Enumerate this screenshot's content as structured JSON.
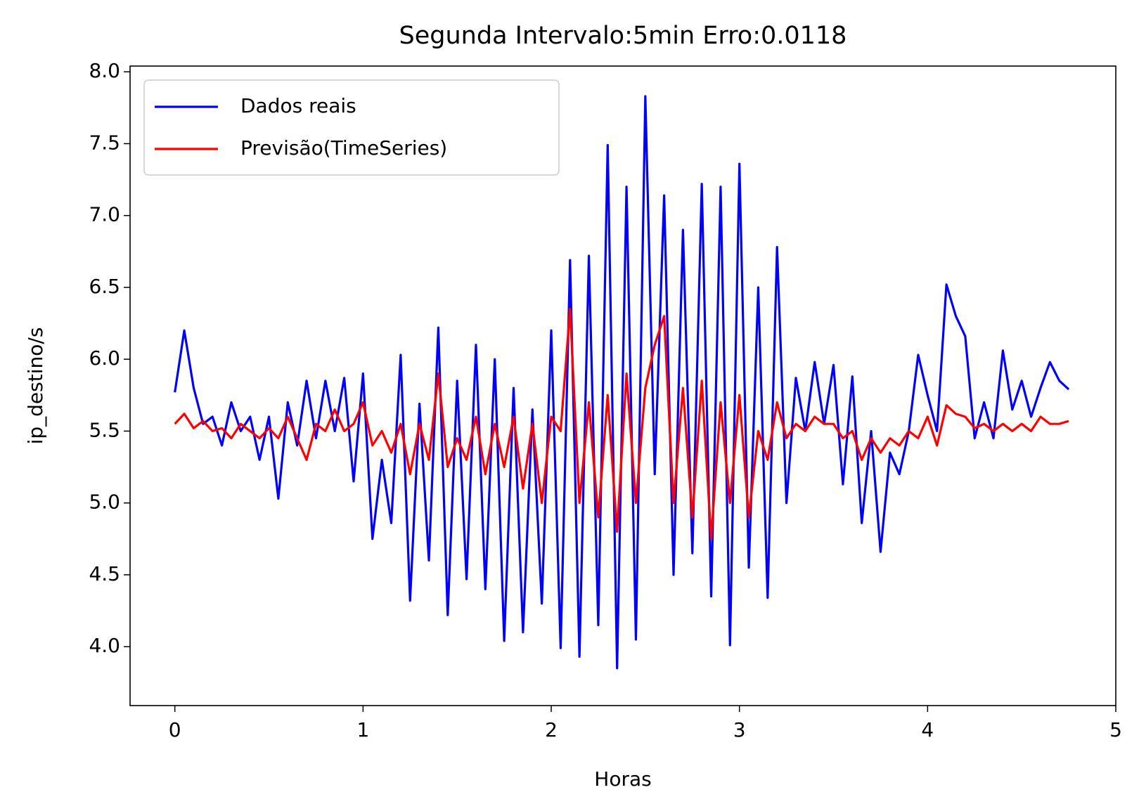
{
  "chart_data": {
    "type": "line",
    "title": "Segunda Intervalo:5min Erro:0.0118",
    "x_label": "Horas",
    "y_label": "ip_destino/s",
    "x": [
      0,
      0.05,
      0.1,
      0.15,
      0.2,
      0.25,
      0.3,
      0.35,
      0.4,
      0.45,
      0.5,
      0.55,
      0.6,
      0.65,
      0.7,
      0.75,
      0.8,
      0.85,
      0.9,
      0.95,
      1.0,
      1.05,
      1.1,
      1.15,
      1.2,
      1.25,
      1.3,
      1.35,
      1.4,
      1.45,
      1.5,
      1.55,
      1.6,
      1.65,
      1.7,
      1.75,
      1.8,
      1.85,
      1.9,
      1.95,
      2.0,
      2.05,
      2.1,
      2.15,
      2.2,
      2.25,
      2.3,
      2.35,
      2.4,
      2.45,
      2.5,
      2.55,
      2.6,
      2.65,
      2.7,
      2.75,
      2.8,
      2.85,
      2.9,
      2.95,
      3.0,
      3.05,
      3.1,
      3.15,
      3.2,
      3.25,
      3.3,
      3.35,
      3.4,
      3.45,
      3.5,
      3.55,
      3.6,
      3.65,
      3.7,
      3.75,
      3.8,
      3.85,
      3.9,
      3.95,
      4.0,
      4.05,
      4.1,
      4.15,
      4.2,
      4.25,
      4.3,
      4.35,
      4.4,
      4.45,
      4.5,
      4.55,
      4.6,
      4.65,
      4.7,
      4.75
    ],
    "series": [
      {
        "name": "Dados reais",
        "color": "#0000ff",
        "values": [
          5.77,
          6.2,
          5.8,
          5.55,
          5.6,
          5.4,
          5.7,
          5.5,
          5.6,
          5.3,
          5.6,
          5.03,
          5.7,
          5.4,
          5.85,
          5.45,
          5.85,
          5.5,
          5.87,
          5.15,
          5.9,
          4.75,
          5.3,
          4.86,
          6.03,
          4.32,
          5.69,
          4.6,
          6.22,
          4.22,
          5.85,
          4.47,
          6.1,
          4.4,
          6.0,
          4.04,
          5.8,
          4.1,
          5.65,
          4.3,
          6.2,
          3.99,
          6.69,
          3.93,
          6.72,
          4.15,
          7.49,
          3.85,
          7.2,
          4.05,
          7.83,
          5.2,
          7.14,
          4.5,
          6.9,
          4.65,
          7.22,
          4.35,
          7.2,
          4.01,
          7.36,
          4.55,
          6.5,
          4.34,
          6.78,
          5.0,
          5.87,
          5.5,
          5.98,
          5.55,
          5.96,
          5.13,
          5.88,
          4.86,
          5.5,
          4.66,
          5.35,
          5.2,
          5.5,
          6.03,
          5.75,
          5.5,
          6.52,
          6.3,
          6.16,
          5.45,
          5.7,
          5.45,
          6.06,
          5.65,
          5.85,
          5.6,
          5.8,
          5.98,
          5.85,
          5.79
        ]
      },
      {
        "name": "Previsão(TimeSeries)",
        "color": "#ff0000",
        "values": [
          5.55,
          5.62,
          5.52,
          5.57,
          5.5,
          5.52,
          5.45,
          5.55,
          5.5,
          5.45,
          5.52,
          5.45,
          5.6,
          5.45,
          5.3,
          5.55,
          5.5,
          5.65,
          5.5,
          5.55,
          5.7,
          5.4,
          5.5,
          5.35,
          5.55,
          5.2,
          5.55,
          5.3,
          5.9,
          5.25,
          5.45,
          5.3,
          5.6,
          5.2,
          5.55,
          5.25,
          5.6,
          5.1,
          5.55,
          5.0,
          5.6,
          5.5,
          6.35,
          5.0,
          5.7,
          4.9,
          5.75,
          4.8,
          5.9,
          5.0,
          5.8,
          6.1,
          6.3,
          5.0,
          5.8,
          4.9,
          5.85,
          4.75,
          5.7,
          5.0,
          5.75,
          4.9,
          5.5,
          5.3,
          5.7,
          5.45,
          5.55,
          5.5,
          5.6,
          5.55,
          5.55,
          5.45,
          5.5,
          5.3,
          5.45,
          5.35,
          5.45,
          5.4,
          5.5,
          5.45,
          5.6,
          5.4,
          5.68,
          5.62,
          5.6,
          5.52,
          5.55,
          5.5,
          5.55,
          5.5,
          5.55,
          5.5,
          5.6,
          5.55,
          5.55,
          5.57
        ]
      }
    ],
    "xlim": [
      -0.238,
      5.0
    ],
    "ylim": [
      3.59,
      8.04
    ],
    "xticks": [
      0,
      1,
      2,
      3,
      4,
      5
    ],
    "yticks": [
      {
        "value": 4.0,
        "label": "4.0"
      },
      4.5,
      {
        "value": 5.0,
        "label": "5.0"
      },
      5.5,
      {
        "value": 6.0,
        "label": "6.0"
      },
      6.5,
      {
        "value": 7.0,
        "label": "7.0"
      },
      7.5,
      {
        "value": 8.0,
        "label": "8.0"
      }
    ],
    "legend": "upper left",
    "grid": false
  }
}
